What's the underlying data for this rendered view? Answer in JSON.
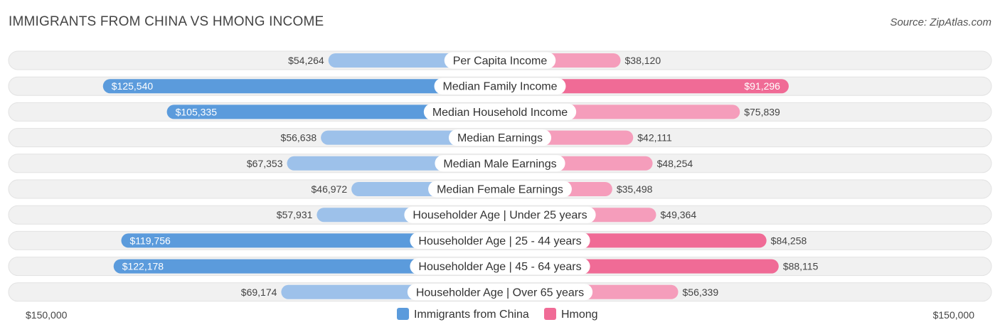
{
  "title": "IMMIGRANTS FROM CHINA VS HMONG INCOME",
  "source": "Source: ZipAtlas.com",
  "chart_data": {
    "type": "bar",
    "orientation": "horizontal-diverging",
    "title": "IMMIGRANTS FROM CHINA VS HMONG INCOME",
    "categories": [
      "Per Capita Income",
      "Median Family Income",
      "Median Household Income",
      "Median Earnings",
      "Median Male Earnings",
      "Median Female Earnings",
      "Householder Age | Under 25 years",
      "Householder Age | 25 - 44 years",
      "Householder Age | 45 - 64 years",
      "Householder Age | Over 65 years"
    ],
    "series": [
      {
        "name": "Immigrants from China",
        "side": "left",
        "values": [
          54264,
          125540,
          105335,
          56638,
          67353,
          46972,
          57931,
          119756,
          122178,
          69174
        ],
        "labels": [
          "$54,264",
          "$125,540",
          "$105,335",
          "$56,638",
          "$67,353",
          "$46,972",
          "$57,931",
          "$119,756",
          "$122,178",
          "$69,174"
        ]
      },
      {
        "name": "Hmong",
        "side": "right",
        "values": [
          38120,
          91296,
          75839,
          42111,
          48254,
          35498,
          49364,
          84258,
          88115,
          56339
        ],
        "labels": [
          "$38,120",
          "$91,296",
          "$75,839",
          "$42,111",
          "$48,254",
          "$35,498",
          "$49,364",
          "$84,258",
          "$88,115",
          "$56,339"
        ]
      }
    ],
    "axis": {
      "min_label": "$150,000",
      "max_label": "$150,000",
      "max_value": 150000
    },
    "legend": {
      "position": "bottom-center",
      "entries": [
        "Immigrants from China",
        "Hmong"
      ]
    },
    "colors": {
      "left_strong": "#5b9bdc",
      "left_light": "#9dc1ea",
      "right_strong": "#f06b96",
      "right_light": "#f59dbb",
      "track": "#f1f1f1"
    }
  }
}
